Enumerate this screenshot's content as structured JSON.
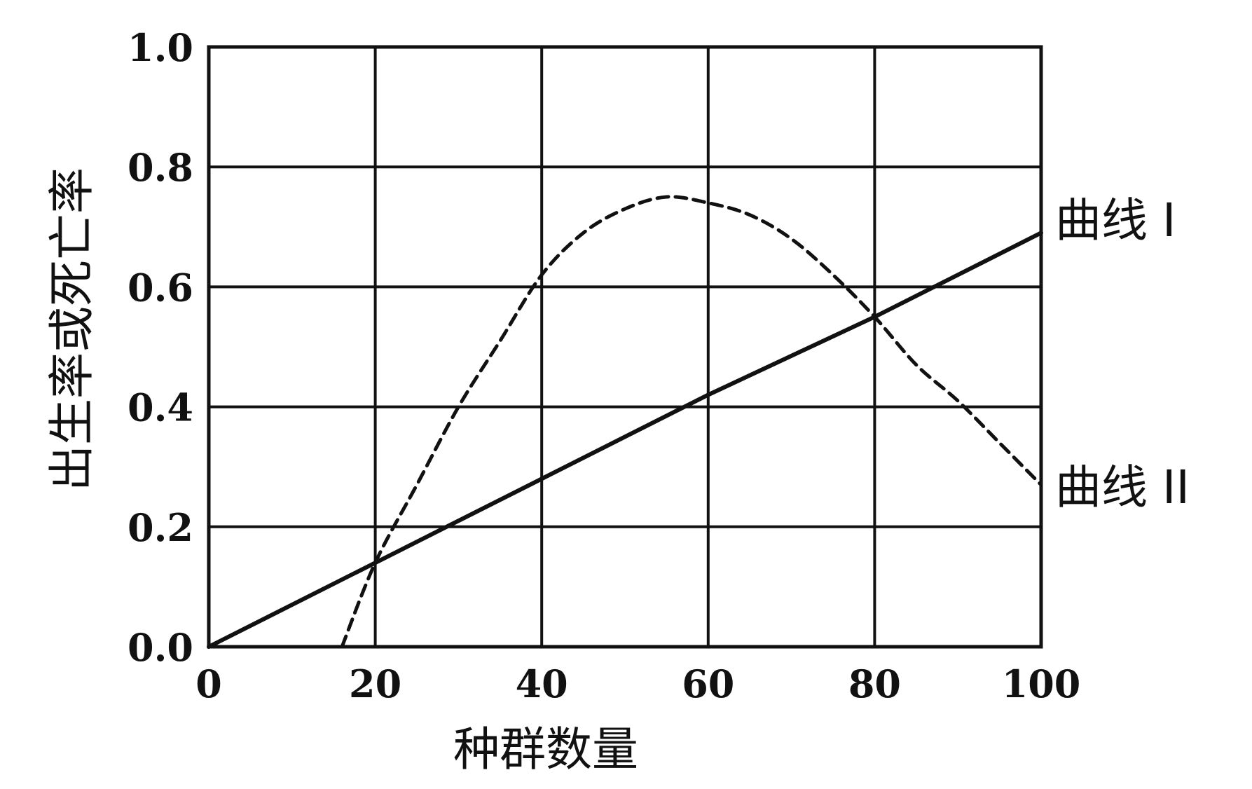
{
  "chart_data": {
    "type": "line",
    "title": "",
    "xlabel": "种群数量",
    "ylabel": "出生率或死亡率",
    "xlim": [
      0,
      100
    ],
    "ylim": [
      0,
      1.0
    ],
    "grid": true,
    "x_ticks": [
      "0",
      "20",
      "40",
      "60",
      "80",
      "100"
    ],
    "x_tick_values": [
      0,
      20,
      40,
      60,
      80,
      100
    ],
    "y_ticks": [
      "0.0",
      "0.2",
      "0.4",
      "0.6",
      "0.8",
      "1.0"
    ],
    "y_tick_values": [
      0,
      0.2,
      0.4,
      0.6,
      0.8,
      1.0
    ],
    "series": [
      {
        "name": "曲线 I",
        "style": "solid",
        "color": "#111111",
        "x": [
          0,
          20,
          40,
          60,
          80,
          100
        ],
        "y": [
          0,
          0.14,
          0.28,
          0.42,
          0.55,
          0.69
        ]
      },
      {
        "name": "曲线 II",
        "style": "dashed",
        "color": "#111111",
        "x": [
          16,
          20,
          25,
          30,
          35,
          40,
          45,
          50,
          55,
          60,
          65,
          70,
          75,
          80,
          85,
          90,
          95,
          100
        ],
        "y": [
          0.0,
          0.14,
          0.27,
          0.4,
          0.51,
          0.62,
          0.69,
          0.73,
          0.75,
          0.74,
          0.72,
          0.68,
          0.62,
          0.55,
          0.47,
          0.41,
          0.34,
          0.27
        ]
      }
    ]
  }
}
